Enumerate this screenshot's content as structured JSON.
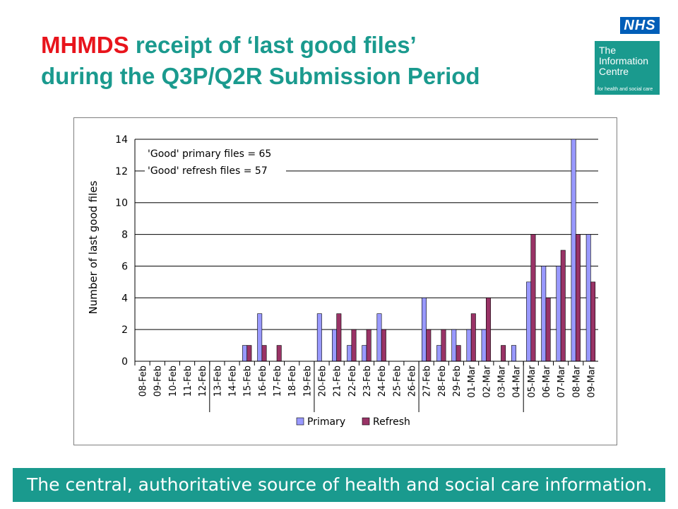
{
  "slide": {
    "title_acronym": "MHMDS",
    "title_rest": " receipt of ‘last good files’",
    "title_line2": "during the Q3P/Q2R Submission Period"
  },
  "logos": {
    "nhs": "NHS",
    "ic_line1": "The",
    "ic_line2": "Information",
    "ic_line3": "Centre",
    "ic_tagline": "for health and social care"
  },
  "footer": {
    "text": "The central, authoritative source of health and social care information."
  },
  "colors": {
    "title_accent": "#e8141c",
    "title_main": "#1a9a8e",
    "footer_bg": "#1a9a8e",
    "primary": "#9999ff",
    "refresh": "#993366",
    "nhs_blue": "#005eb8"
  },
  "chart_data": {
    "type": "bar",
    "title": "",
    "xlabel": "",
    "ylabel": "Number of last good files",
    "ylim": [
      0,
      14
    ],
    "yticks": [
      0,
      2,
      4,
      6,
      8,
      10,
      12,
      14
    ],
    "grid": true,
    "legend": "bottom",
    "categories": [
      "08-Feb",
      "09-Feb",
      "10-Feb",
      "11-Feb",
      "12-Feb",
      "13-Feb",
      "14-Feb",
      "15-Feb",
      "16-Feb",
      "17-Feb",
      "18-Feb",
      "19-Feb",
      "20-Feb",
      "21-Feb",
      "22-Feb",
      "23-Feb",
      "24-Feb",
      "25-Feb",
      "26-Feb",
      "27-Feb",
      "28-Feb",
      "29-Feb",
      "01-Mar",
      "02-Mar",
      "03-Mar",
      "04-Mar",
      "05-Mar",
      "06-Mar",
      "07-Mar",
      "08-Mar",
      "09-Mar"
    ],
    "week_separators_after": [
      "12-Feb",
      "19-Feb",
      "26-Feb",
      "04-Mar"
    ],
    "series": [
      {
        "name": "Primary",
        "color": "#9999ff",
        "values": [
          0,
          0,
          0,
          0,
          0,
          0,
          0,
          1,
          3,
          0,
          0,
          0,
          3,
          2,
          1,
          1,
          3,
          0,
          0,
          4,
          1,
          2,
          2,
          2,
          0,
          1,
          5,
          6,
          6,
          14,
          8
        ]
      },
      {
        "name": "Refresh",
        "color": "#993366",
        "values": [
          0,
          0,
          0,
          0,
          0,
          0,
          0,
          1,
          1,
          1,
          0,
          0,
          0,
          3,
          2,
          2,
          2,
          0,
          0,
          2,
          2,
          1,
          3,
          4,
          1,
          0,
          8,
          4,
          7,
          8,
          5
        ]
      }
    ],
    "annotations": [
      "'Good' primary files = 65",
      "'Good' refresh files = 57"
    ]
  }
}
